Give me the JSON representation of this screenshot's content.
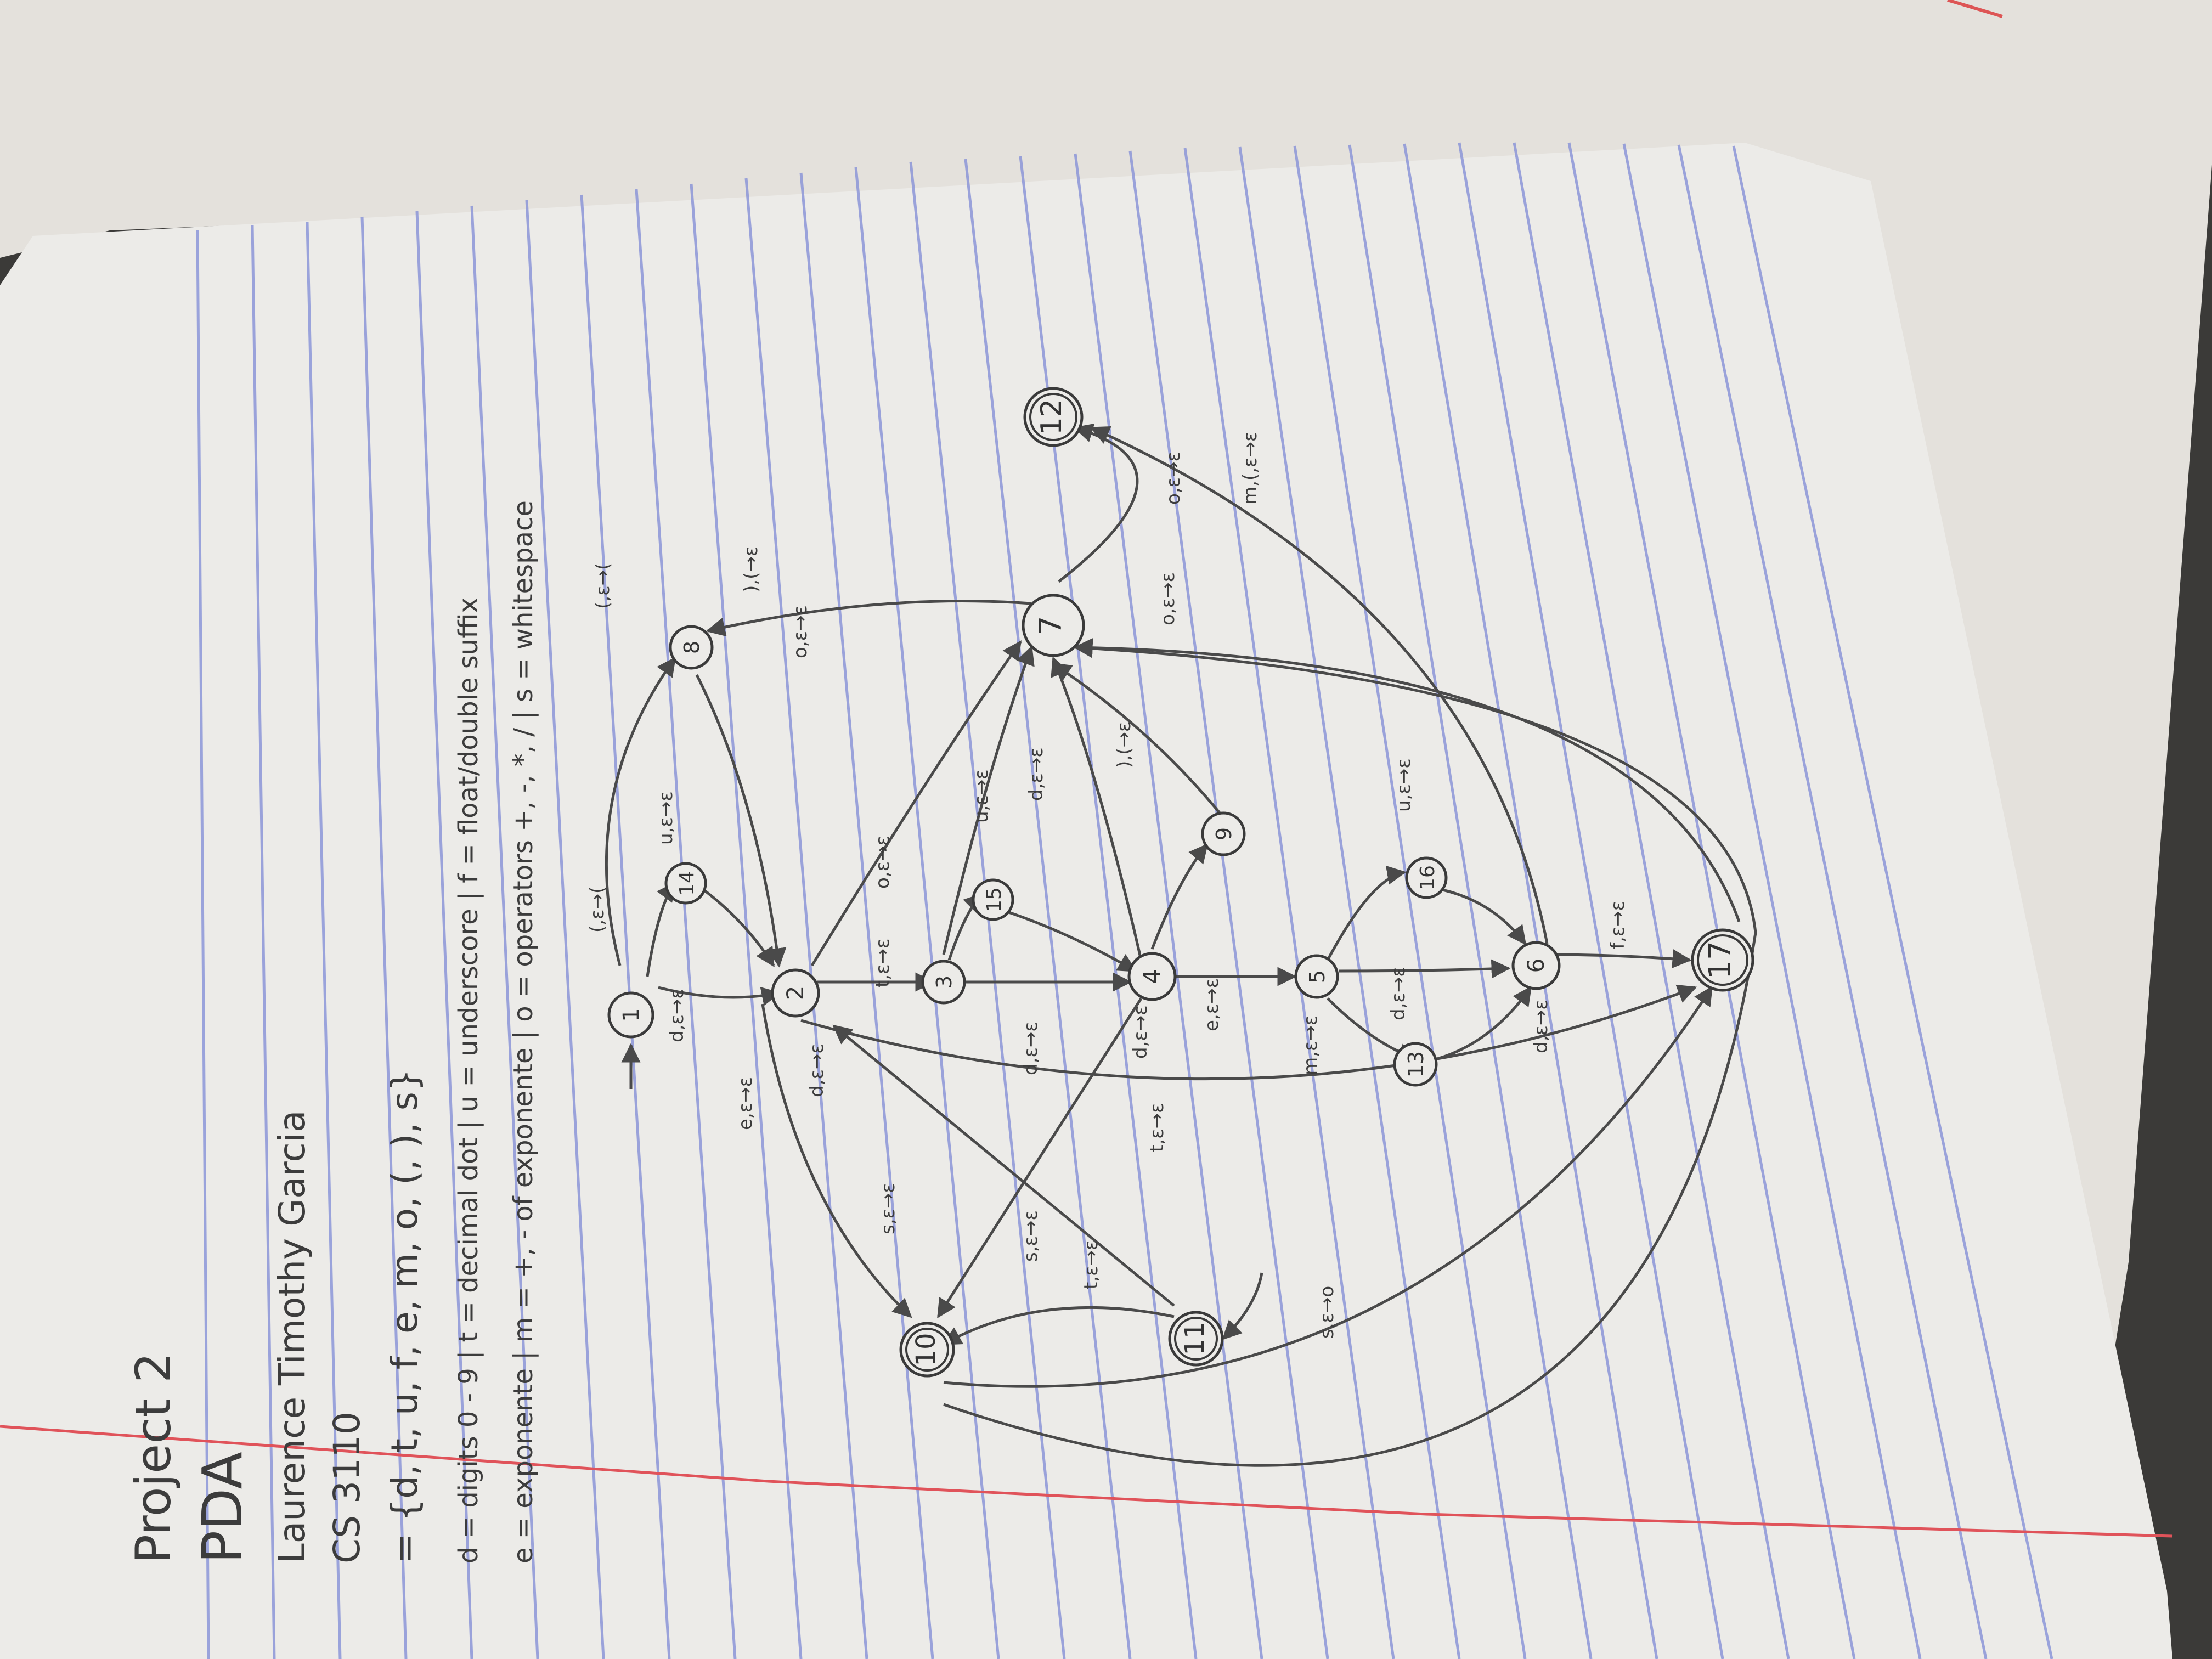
{
  "header": {
    "title": "Project 2",
    "subtitle": "PDA",
    "author": "Laurence Timothy Garcia",
    "course": "CS 3110"
  },
  "alphabet": "= {d, t, u, f, e, m, o, (, ), s}",
  "legend": {
    "line1": "d = digits 0 - 9  |  t = decimal dot  |  u = underscore  |  f = float/double suffix",
    "line2": "e = exponente  |  m = +, - of exponente  |  o = operators +, -, *, /  |  s = whitespace"
  },
  "states": [
    {
      "id": "1",
      "label": "1",
      "start": true
    },
    {
      "id": "2",
      "label": "2"
    },
    {
      "id": "3",
      "label": "3"
    },
    {
      "id": "4",
      "label": "4"
    },
    {
      "id": "5",
      "label": "5"
    },
    {
      "id": "6",
      "label": "6"
    },
    {
      "id": "7",
      "label": "7"
    },
    {
      "id": "8",
      "label": "8"
    },
    {
      "id": "9",
      "label": "9"
    },
    {
      "id": "10",
      "label": "10"
    },
    {
      "id": "11",
      "label": "11"
    },
    {
      "id": "12",
      "label": "12"
    },
    {
      "id": "13",
      "label": "13"
    },
    {
      "id": "14",
      "label": "14"
    },
    {
      "id": "15",
      "label": "15"
    },
    {
      "id": "16",
      "label": "16"
    },
    {
      "id": "17",
      "label": "17"
    }
  ],
  "transitions": [
    {
      "from": "1",
      "to": "2",
      "label": "d,ε→ε"
    },
    {
      "from": "1",
      "to": "8",
      "label": "(,ε→("
    },
    {
      "from": "8",
      "to": "8",
      "label": "(,ε→("
    },
    {
      "from": "8",
      "to": "2",
      "label": "d,ε→ε"
    },
    {
      "from": "2",
      "to": "3",
      "label": "t,ε→ε"
    },
    {
      "from": "2",
      "to": "7",
      "label": "o,ε→ε"
    },
    {
      "from": "2",
      "to": "10",
      "label": "s,ε→ε"
    },
    {
      "from": "3",
      "to": "4",
      "label": "d,ε→ε"
    },
    {
      "from": "4",
      "to": "5",
      "label": "e,ε→ε"
    },
    {
      "from": "5",
      "to": "6",
      "label": "d,ε→ε"
    },
    {
      "from": "5",
      "to": "13",
      "label": "m,ε→ε"
    },
    {
      "from": "6",
      "to": "17",
      "label": "f,ε→ε"
    },
    {
      "from": "7",
      "to": "12",
      "label": "o,ε→ε"
    },
    {
      "from": "11",
      "to": "10",
      "label": "s,ε→o"
    },
    {
      "from": "9",
      "to": "7",
      "label": "),(→ε"
    }
  ]
}
